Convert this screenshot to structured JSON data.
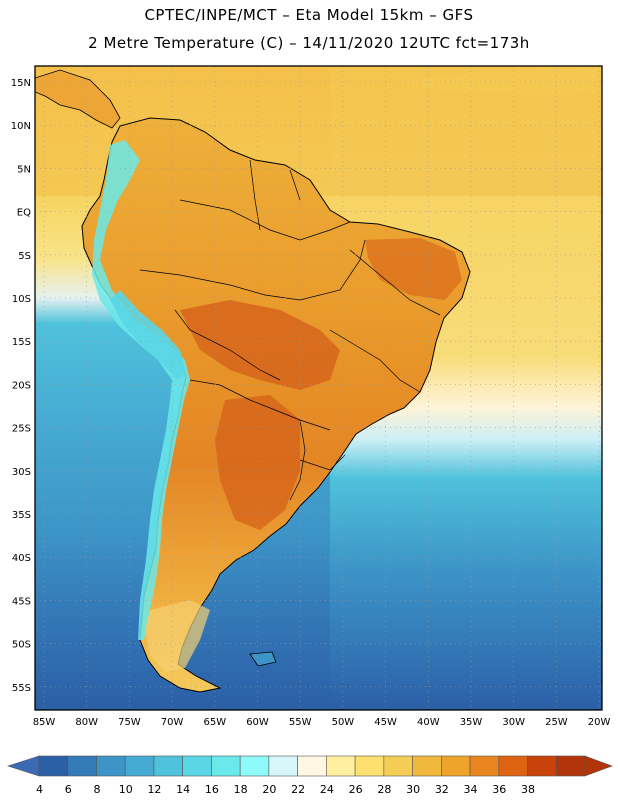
{
  "header": {
    "line1": "CPTEC/INPE/MCT –  Eta Model 15km – GFS",
    "line2": "2 Metre Temperature (C) – 14/11/2020 12UTC fct=173h"
  },
  "map": {
    "lat_labels": [
      "15N",
      "10N",
      "5N",
      "EQ",
      "5S",
      "10S",
      "15S",
      "20S",
      "25S",
      "30S",
      "35S",
      "40S",
      "45S",
      "50S",
      "55S"
    ],
    "lon_labels": [
      "85W",
      "80W",
      "75W",
      "70W",
      "65W",
      "60W",
      "55W",
      "50W",
      "45W",
      "40W",
      "35W",
      "30W",
      "25W",
      "20W"
    ]
  },
  "colorbar": {
    "labels": [
      "4",
      "6",
      "8",
      "10",
      "12",
      "14",
      "16",
      "18",
      "20",
      "22",
      "24",
      "26",
      "28",
      "30",
      "32",
      "34",
      "36",
      "38"
    ],
    "colors": [
      "#2b5fa6",
      "#3479b8",
      "#3d95c7",
      "#46abd3",
      "#4fc2dc",
      "#5ad6e4",
      "#6ae9ea",
      "#8ffafa",
      "#d8f7fb",
      "#fff7e3",
      "#fff0a0",
      "#fde070",
      "#f5cd55",
      "#f0b83c",
      "#eea42a",
      "#e98620",
      "#dd6212",
      "#c7430a",
      "#b1340a",
      "#3a6ab4"
    ]
  },
  "colors": {
    "ocean_deep": "#2d66a9",
    "ocean_mid": "#45a7cf",
    "ocean_cyan": "#52c7dd",
    "ocean_warm": "#f6d35e",
    "land_hot": "#e78c22",
    "land_very_hot": "#d4621a",
    "land_warm": "#f0b83c",
    "andes_cold": "#6ae9ea"
  }
}
